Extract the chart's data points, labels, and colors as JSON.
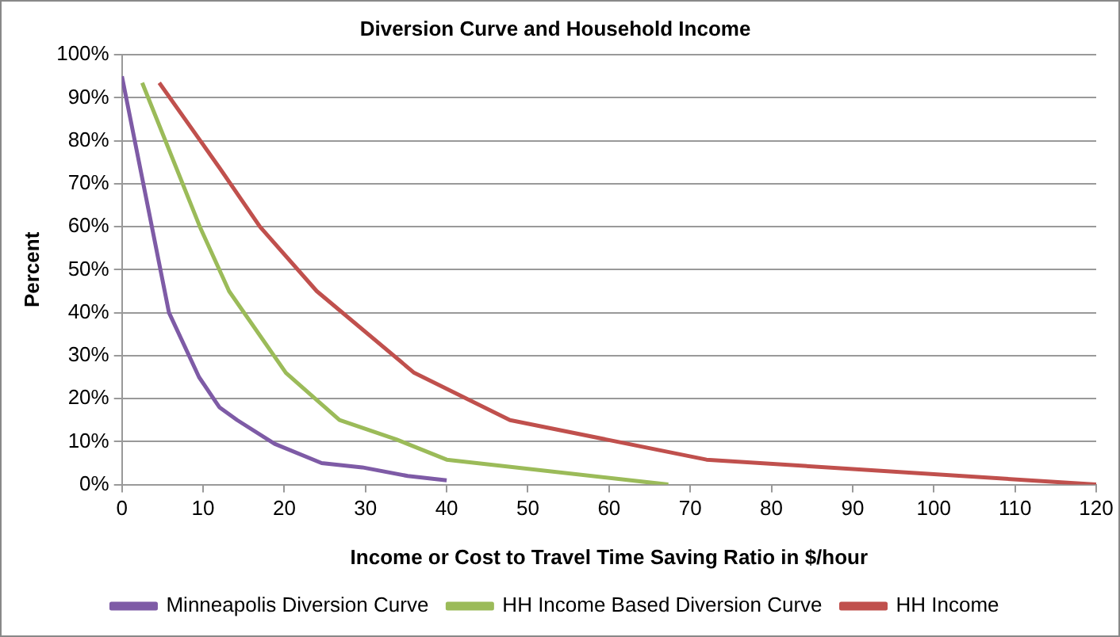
{
  "chart_data": {
    "type": "line",
    "title": "Diversion Curve and Household Income",
    "xlabel": "Income or Cost to Travel Time Saving Ratio in $/hour",
    "ylabel": "Percent",
    "series": [
      {
        "name": "Minneapolis Diversion Curve",
        "color": "#7e5ba6",
        "x": [
          0,
          5.8,
          9.5,
          12,
          14.2,
          18.8,
          24.6,
          29.6,
          35.2,
          40
        ],
        "values": [
          95,
          40,
          25,
          18,
          15,
          9.5,
          5,
          4,
          2,
          1
        ]
      },
      {
        "name": "HH Income Based Diversion Curve",
        "color": "#9bbb59",
        "x": [
          2.5,
          9.6,
          13.2,
          20.2,
          26.8,
          33.8,
          40,
          67.3
        ],
        "values": [
          93.5,
          60,
          45,
          26,
          15,
          10.5,
          5.8,
          0
        ]
      },
      {
        "name": "HH Income",
        "color": "#c0504d",
        "x": [
          4.6,
          12.1,
          17,
          24,
          36,
          47.8,
          72,
          120
        ],
        "values": [
          93.5,
          73.5,
          60,
          45,
          26,
          15,
          5.8,
          0
        ]
      }
    ],
    "xlim": [
      0,
      120
    ],
    "xticks": [
      0,
      10,
      20,
      30,
      40,
      50,
      60,
      70,
      80,
      90,
      100,
      110,
      120
    ],
    "ylim": [
      0,
      100
    ],
    "yticks": [
      {
        "value": 0,
        "label": "0%"
      },
      {
        "value": 10,
        "label": "10%"
      },
      {
        "value": 20,
        "label": "20%"
      },
      {
        "value": 30,
        "label": "30%"
      },
      {
        "value": 40,
        "label": "40%"
      },
      {
        "value": 50,
        "label": "50%"
      },
      {
        "value": 60,
        "label": "60%"
      },
      {
        "value": 70,
        "label": "70%"
      },
      {
        "value": 80,
        "label": "80%"
      },
      {
        "value": 90,
        "label": "90%"
      },
      {
        "value": 100,
        "label": "100%"
      }
    ],
    "grid": "y",
    "legend": "bottom",
    "marker": "none",
    "line_style": "solid"
  }
}
